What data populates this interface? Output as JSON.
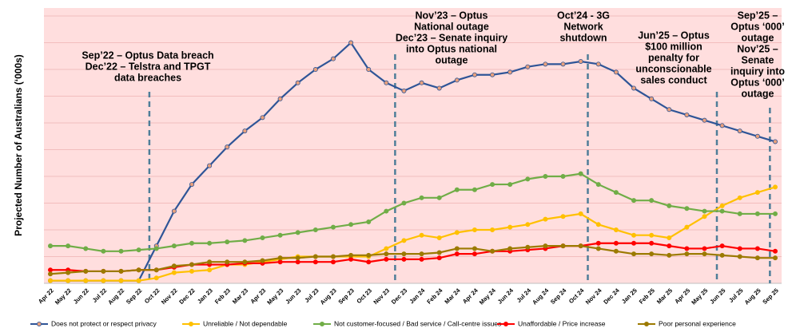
{
  "chart_data": {
    "type": "line",
    "y_label": "Projected Number of Australians (‘000s)",
    "categories": [
      "Apr 22",
      "May 22",
      "Jun 22",
      "Jul 22",
      "Aug 22",
      "Sep 22",
      "Oct 22",
      "Nov 22",
      "Dec 22",
      "Jan 23",
      "Feb 23",
      "Mar 23",
      "Apr 23",
      "May 23",
      "Jun 23",
      "Jul 23",
      "Aug 23",
      "Sep 23",
      "Oct 23",
      "Nov 23",
      "Dec 23",
      "Jan 24",
      "Feb 24",
      "Mar 24",
      "Apr 24",
      "May 24",
      "Jun 24",
      "Jul 24",
      "Aug 24",
      "Sep 24",
      "Oct 24",
      "Nov 24",
      "Dec 24",
      "Jan 25",
      "Feb 25",
      "Mar 25",
      "Apr 25",
      "May 25",
      "Jun 25",
      "Jul 25",
      "Aug 25",
      "Sep 25"
    ],
    "series": [
      {
        "name": "Does not protect or respect privacy",
        "color": "#2F5597",
        "marker_color": "#E8A07C",
        "values": [
          1,
          1,
          1,
          1,
          1,
          1,
          14,
          27,
          37,
          44,
          51,
          57,
          62,
          69,
          75,
          80,
          84,
          90,
          80,
          75,
          72,
          75,
          73,
          76,
          78,
          78,
          79,
          81,
          82,
          82,
          83,
          82,
          79,
          73,
          69,
          65,
          63,
          61,
          59,
          57,
          55,
          53
        ]
      },
      {
        "name": "Unreliable / Not dependable",
        "color": "#FFC000",
        "marker_color": "#FFC000",
        "values": [
          1,
          1,
          1,
          1,
          1,
          1,
          2,
          4,
          4.5,
          5,
          7,
          7,
          8,
          9,
          10,
          10,
          10,
          10,
          10,
          13,
          16,
          18,
          17,
          19,
          20,
          20,
          21,
          22,
          24,
          25,
          26,
          22,
          20,
          18,
          18,
          17,
          21,
          25,
          29,
          32,
          34,
          36
        ]
      },
      {
        "name": "Not customer-focused / Bad service / Call-centre issues",
        "color": "#70AD47",
        "marker_color": "#70AD47",
        "values": [
          14,
          14,
          13,
          12,
          12,
          12.5,
          13,
          14,
          15,
          15,
          15.5,
          16,
          17,
          18,
          19,
          20,
          21,
          22,
          23,
          27,
          30,
          32,
          32,
          35,
          35,
          37,
          37,
          39,
          40,
          40,
          41,
          37,
          34,
          31,
          31,
          29,
          28,
          27,
          27,
          26,
          26,
          26
        ]
      },
      {
        "name": "Unaffordable / Price increase",
        "color": "#FF0000",
        "marker_color": "#FF0000",
        "values": [
          5,
          5,
          4.5,
          4.5,
          4.5,
          5,
          5,
          6,
          7,
          7,
          7,
          7.5,
          7.5,
          8,
          8,
          8,
          8,
          9,
          8,
          9,
          9,
          9,
          9.5,
          11,
          11,
          12,
          12,
          12.5,
          13,
          14,
          14,
          15,
          15,
          15,
          15,
          14,
          13,
          13,
          14,
          13,
          13,
          12
        ]
      },
      {
        "name": "Poor personal experience",
        "color": "#9C7A00",
        "marker_color": "#9C7A00",
        "values": [
          3.5,
          4,
          4.5,
          4.5,
          4.5,
          5,
          5,
          6.5,
          7,
          8,
          8,
          8,
          8.5,
          9.5,
          9.5,
          10,
          10,
          10.5,
          10.5,
          11,
          11,
          11,
          11.5,
          13,
          13,
          12,
          13,
          13.5,
          14,
          14,
          14,
          13,
          12,
          11,
          11,
          10.5,
          11,
          11,
          10.5,
          10,
          9.5,
          9.5
        ]
      }
    ],
    "ylim": [
      0,
      103
    ],
    "gridlines": [
      10,
      20,
      30,
      40,
      50,
      60,
      70,
      80,
      90,
      100
    ],
    "grid": true,
    "annotations": [
      {
        "lines": [
          "Sep’22 – Optus Data breach",
          "Dec’22 – Telstra and TPGT",
          "data breaches"
        ]
      },
      {
        "lines": [
          "Nov’23 – Optus",
          "National outage",
          "Dec’23 – Senate inquiry",
          "into Optus national",
          "outage"
        ]
      },
      {
        "lines": [
          "Oct’24 - 3G",
          "Network",
          "shutdown"
        ]
      },
      {
        "lines": [
          "Jun’25 – Optus",
          "$100 million",
          "penalty for",
          "unconscionable",
          "sales conduct"
        ]
      },
      {
        "lines": [
          "Sep’25 –",
          "Optus ‘000’",
          "outage",
          "Nov’25 –",
          "Senate",
          "inquiry into",
          "Optus ‘000’",
          "outage"
        ]
      }
    ],
    "legend": "bottom"
  }
}
